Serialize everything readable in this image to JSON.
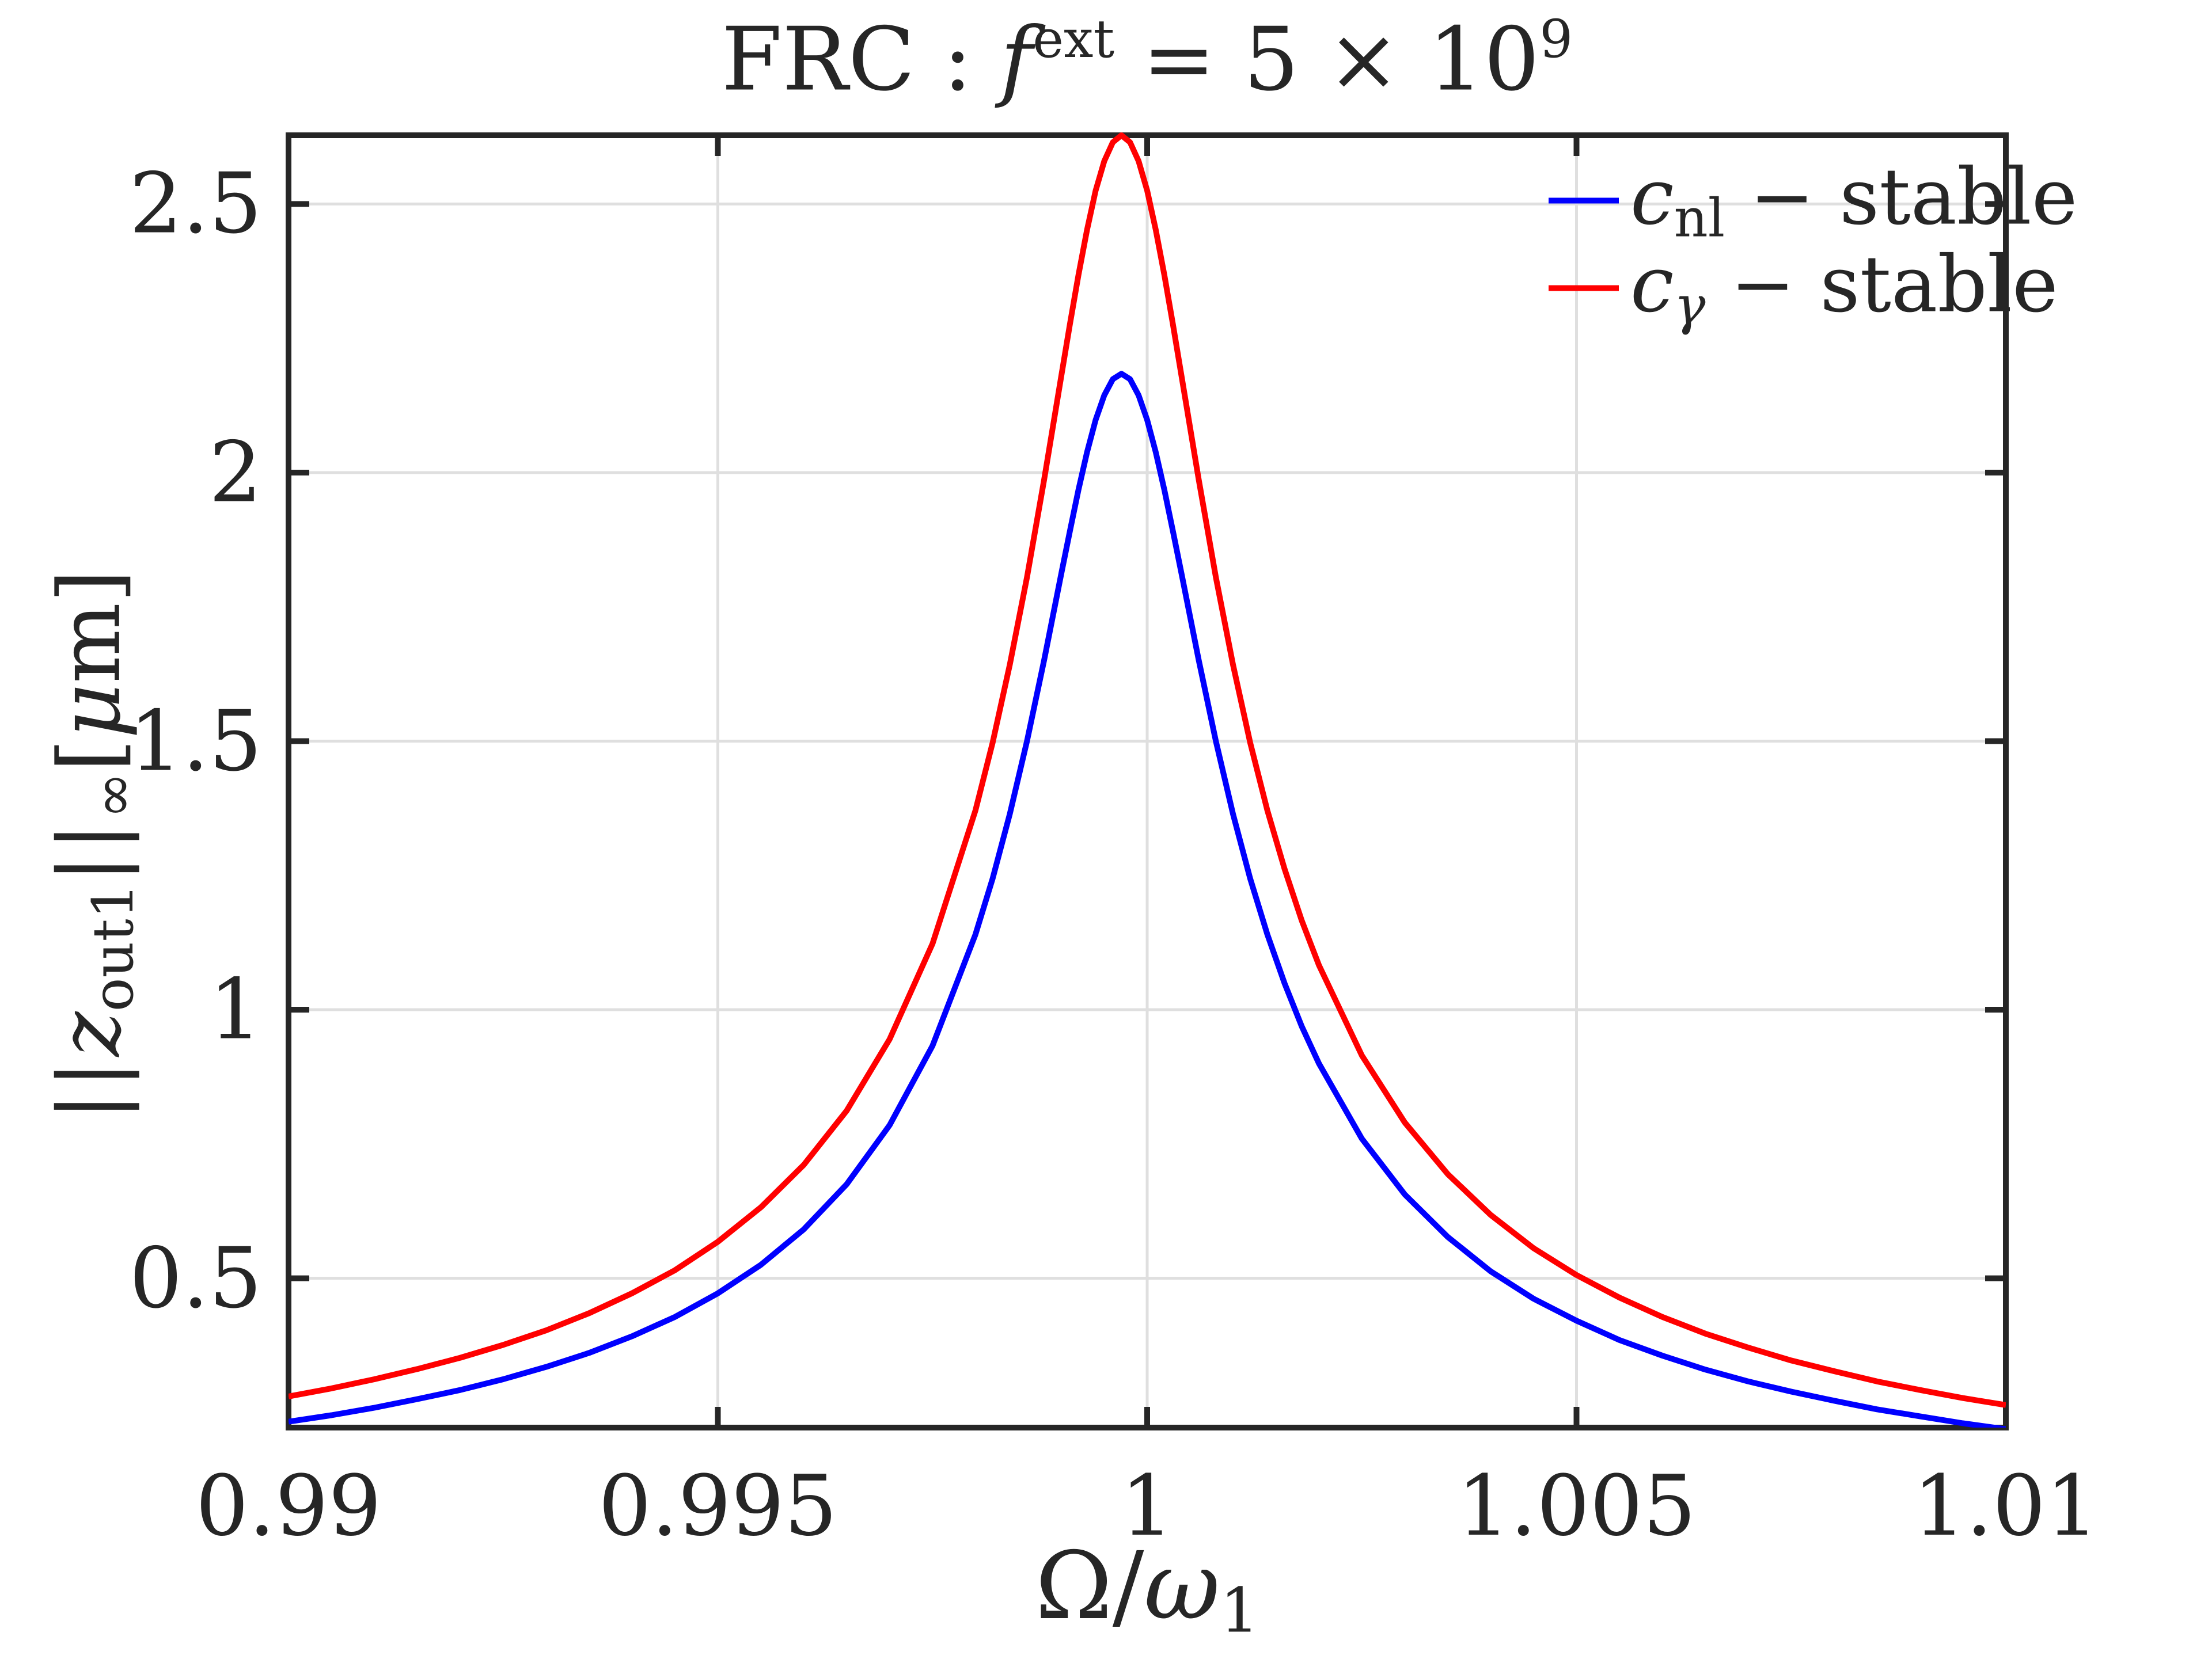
{
  "figure": {
    "background": "#ffffff",
    "axes_color": "#262626",
    "grid_color": "#dfdfdf",
    "tick_direction": "in",
    "box": true
  },
  "chart_data": {
    "type": "line",
    "title": "FRC : f^ext = 5 × 10^9",
    "title_parts": {
      "prefix": "FRC : ",
      "fvar": "f",
      "fsup": "ext",
      "eq": " = 5 × 10",
      "power": "9"
    },
    "xlabel": "Ω/ω_1",
    "xlabel_parts": {
      "Omega": "Ω",
      "slash": "/",
      "omega": "ω",
      "sub": "1"
    },
    "ylabel": "||z_out1||_∞ [μm]",
    "ylabel_parts": {
      "norm_open": "||",
      "z": "z",
      "z_sub": "out1",
      "norm_close": "||",
      "inf_sub": "∞",
      "bracket_open": "[",
      "mu": "μ",
      "unit_close": "m]"
    },
    "xlim": [
      0.99,
      1.01
    ],
    "ylim": [
      0.222,
      2.628
    ],
    "x_ticks": [
      0.99,
      0.995,
      1,
      1.005,
      1.01
    ],
    "x_tick_labels": [
      "0.99",
      "0.995",
      "1",
      "1.005",
      "1.01"
    ],
    "y_ticks": [
      0.5,
      1,
      1.5,
      2,
      2.5
    ],
    "y_tick_labels": [
      "0.5",
      "1",
      "1.5",
      "2",
      "2.5"
    ],
    "grid": true,
    "legend": {
      "position": "northeast",
      "box": false,
      "entries": [
        {
          "label": "c_nl − stable",
          "cvar": "c",
          "sub": "nl",
          "sub_italic": false,
          "suffix": " − stable",
          "color": "#0000ff"
        },
        {
          "label": "c_γ − stable",
          "cvar": "c",
          "sub": "γ",
          "sub_italic": true,
          "suffix": " − stable",
          "color": "#ff0000"
        }
      ]
    },
    "peak": {
      "x": 0.9997,
      "blue": 2.184,
      "red": 2.628
    },
    "x": [
      0.99,
      0.9905,
      0.991,
      0.9915,
      0.992,
      0.9925,
      0.993,
      0.9935,
      0.994,
      0.9945,
      0.995,
      0.9955,
      0.996,
      0.9965,
      0.997,
      0.9975,
      0.998,
      0.9982,
      0.9984,
      0.9986,
      0.9988,
      0.999,
      0.9991,
      0.9992,
      0.9993,
      0.9994,
      0.9995,
      0.9996,
      0.9997,
      0.9998,
      0.9999,
      1.0,
      1.0001,
      1.0002,
      1.0003,
      1.0004,
      1.0006,
      1.0008,
      1.001,
      1.0012,
      1.0014,
      1.0016,
      1.0018,
      1.002,
      1.0025,
      1.003,
      1.0035,
      1.004,
      1.0045,
      1.005,
      1.0055,
      1.006,
      1.0065,
      1.007,
      1.0075,
      1.008,
      1.0085,
      1.009,
      1.0095,
      1.01
    ],
    "series": [
      {
        "name": "c_nl − stable",
        "color": "#0000ff",
        "values": [
          0.233,
          0.245,
          0.259,
          0.275,
          0.292,
          0.312,
          0.335,
          0.361,
          0.392,
          0.428,
          0.472,
          0.525,
          0.591,
          0.675,
          0.785,
          0.933,
          1.14,
          1.244,
          1.364,
          1.5,
          1.651,
          1.812,
          1.891,
          1.968,
          2.038,
          2.098,
          2.144,
          2.174,
          2.184,
          2.174,
          2.144,
          2.098,
          2.038,
          1.968,
          1.891,
          1.812,
          1.651,
          1.5,
          1.364,
          1.244,
          1.14,
          1.049,
          0.969,
          0.9,
          0.76,
          0.656,
          0.577,
          0.513,
          0.462,
          0.421,
          0.385,
          0.356,
          0.33,
          0.308,
          0.289,
          0.272,
          0.256,
          0.243,
          0.23,
          0.219
        ]
      },
      {
        "name": "c_γ − stable",
        "color": "#ff0000",
        "values": [
          0.28,
          0.295,
          0.312,
          0.331,
          0.352,
          0.376,
          0.403,
          0.435,
          0.472,
          0.515,
          0.568,
          0.632,
          0.711,
          0.812,
          0.945,
          1.123,
          1.371,
          1.497,
          1.642,
          1.805,
          1.987,
          2.18,
          2.276,
          2.368,
          2.452,
          2.525,
          2.58,
          2.615,
          2.628,
          2.615,
          2.58,
          2.525,
          2.452,
          2.368,
          2.276,
          2.18,
          1.987,
          1.805,
          1.642,
          1.497,
          1.371,
          1.262,
          1.166,
          1.083,
          0.915,
          0.79,
          0.694,
          0.618,
          0.556,
          0.506,
          0.464,
          0.428,
          0.397,
          0.371,
          0.347,
          0.327,
          0.308,
          0.292,
          0.277,
          0.264
        ]
      }
    ]
  }
}
